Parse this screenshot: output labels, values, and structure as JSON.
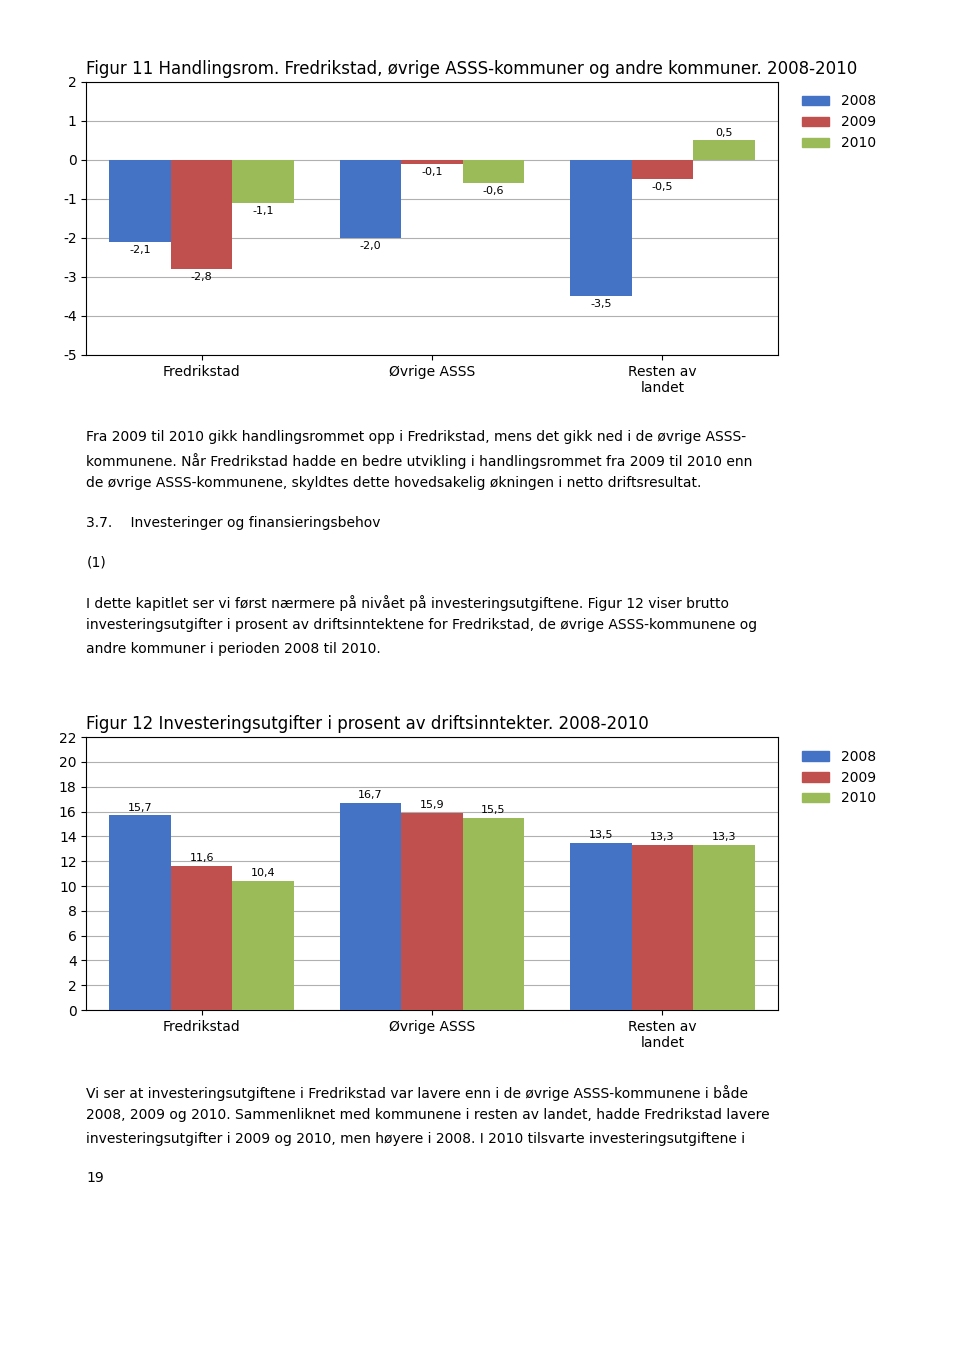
{
  "chart_data": [
    {
      "type": "bar",
      "title": "Figur 11 Handlingsrom. Fredrikstad, øvrige ASSS-kommuner og andre kommuner. 2008-2010",
      "categories": [
        "Fredrikstad",
        "Øvrige ASSS",
        "Resten av\nlandet"
      ],
      "series": [
        {
          "name": "2008",
          "color": "#4472C4",
          "values": [
            -2.1,
            -2.0,
            -3.5
          ],
          "value_labels": [
            "-2,1",
            "-2,0",
            "-3,5"
          ]
        },
        {
          "name": "2009",
          "color": "#C0504D",
          "values": [
            -2.8,
            -0.1,
            -0.5
          ],
          "value_labels": [
            "-2,8",
            "-0,1",
            "-0,5"
          ]
        },
        {
          "name": "2010",
          "color": "#9BBB59",
          "values": [
            -1.1,
            -0.6,
            0.5
          ],
          "value_labels": [
            "-1,1",
            "-0,6",
            "0,5"
          ]
        }
      ],
      "ylim": [
        -5,
        2
      ],
      "yticks": [
        -5,
        -4,
        -3,
        -2,
        -1,
        0,
        1,
        2
      ],
      "grid": true,
      "legend": "upper right",
      "data_labels": true,
      "annotations": [
        [
          "Fra 2009 til 2010 gikk handlingsrommet opp i Fredrikstad, mens det gikk ned i de øvrige ASSS-",
          "kommunene. Når Fredrikstad hadde en bedre utvikling i handlingsrommet fra 2009 til 2010 enn",
          "de øvrige ASSS-kommunene, skyldtes dette hovedsakelig økningen i netto driftsresultat."
        ],
        [
          "3.7.  Investeringer og finansieringsbehov"
        ],
        [
          "(1)"
        ],
        [
          "I dette kapitlet ser vi først nærmere på nivået på investeringsutgiftene. Figur 12 viser brutto",
          "investeringsutgifter i prosent av driftsinntektene for Fredrikstad, de øvrige ASSS-kommunene og",
          "andre kommuner i perioden 2008 til 2010."
        ]
      ]
    },
    {
      "type": "bar",
      "title": "Figur 12 Investeringsutgifter i prosent av driftsinntekter. 2008-2010",
      "categories": [
        "Fredrikstad",
        "Øvrige ASSS",
        "Resten av\nlandet"
      ],
      "series": [
        {
          "name": "2008",
          "color": "#4472C4",
          "values": [
            15.7,
            16.7,
            13.5
          ],
          "value_labels": [
            "15,7",
            "16,7",
            "13,5"
          ]
        },
        {
          "name": "2009",
          "color": "#C0504D",
          "values": [
            11.6,
            15.9,
            13.3
          ],
          "value_labels": [
            "11,6",
            "15,9",
            "13,3"
          ]
        },
        {
          "name": "2010",
          "color": "#9BBB59",
          "values": [
            10.4,
            15.5,
            13.3
          ],
          "value_labels": [
            "10,4",
            "15,5",
            "13,3"
          ]
        }
      ],
      "ylim": [
        0,
        22
      ],
      "yticks": [
        0,
        2,
        4,
        6,
        8,
        10,
        12,
        14,
        16,
        18,
        20,
        22
      ],
      "grid": true,
      "legend": "upper right",
      "data_labels": true,
      "annotations": [
        [
          "Vi ser at investeringsutgiftene i Fredrikstad var lavere enn i de øvrige ASSS-kommunene i både",
          "2008, 2009 og 2010. Sammenliknet med kommunene i resten av landet, hadde Fredrikstad lavere",
          "investeringsutgifter i 2009 og 2010, men høyere i 2008. I 2010 tilsvarte investeringsutgiftene i"
        ],
        [
          "19"
        ]
      ]
    }
  ]
}
